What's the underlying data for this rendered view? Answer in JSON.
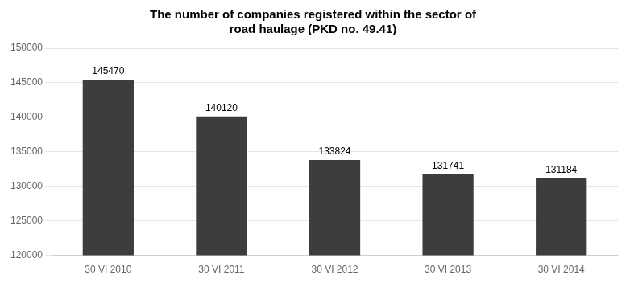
{
  "chart_data": {
    "type": "bar",
    "title": "The number of companies registered within the sector of\nroad haulage (PKD no. 49.41)",
    "categories": [
      "30 VI 2010",
      "30 VI 2011",
      "30 VI 2012",
      "30 VI 2013",
      "30 VI 2014"
    ],
    "values": [
      145470,
      140120,
      133824,
      131741,
      131184
    ],
    "color": "#3d3d3d",
    "ylim": [
      120000,
      150000
    ],
    "yticks": [
      120000,
      125000,
      130000,
      135000,
      140000,
      145000,
      150000
    ],
    "grid": true,
    "data_labels": true
  }
}
